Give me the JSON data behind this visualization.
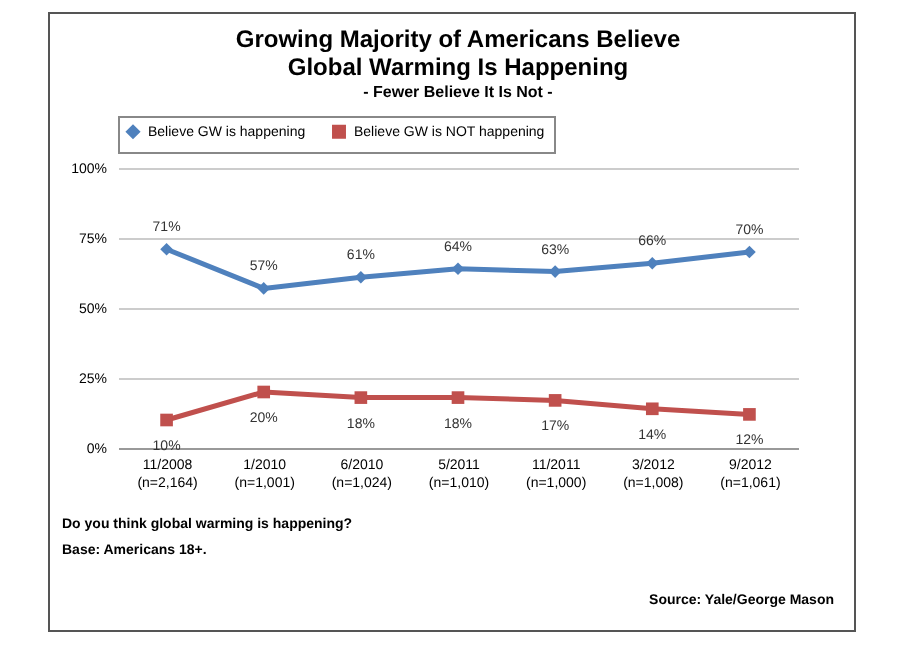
{
  "chart_data": {
    "type": "line",
    "title": [
      "Growing Majority of Americans Believe",
      "Global Warming Is Happening"
    ],
    "subtitle": "- Fewer Believe It Is Not -",
    "categories": [
      "11/2008\n(n=2,164)",
      "1/2010\n(n=1,001)",
      "6/2010\n(n=1,024)",
      "5/2011\n(n=1,010)",
      "11/2011\n(n=1,000)",
      "3/2012\n(n=1,008)",
      "9/2012\n(n=1,061)"
    ],
    "series": [
      {
        "name": "Believe GW is happening",
        "color": "#4f81bd",
        "marker": "diamond",
        "values": [
          71,
          57,
          61,
          64,
          63,
          66,
          70
        ],
        "value_labels": [
          "71%",
          "57%",
          "61%",
          "64%",
          "63%",
          "66%",
          "70%"
        ]
      },
      {
        "name": "Believe GW is NOT happening",
        "color": "#c0504d",
        "marker": "square",
        "values": [
          10,
          20,
          18,
          18,
          17,
          14,
          12
        ],
        "value_labels": [
          "10%",
          "20%",
          "18%",
          "18%",
          "17%",
          "14%",
          "12%"
        ]
      }
    ],
    "ylim": [
      0,
      100
    ],
    "yticks": [
      {
        "value": 0,
        "label": "0%"
      },
      {
        "value": 25,
        "label": "25%"
      },
      {
        "value": 50,
        "label": "50%"
      },
      {
        "value": 75,
        "label": "75%"
      },
      {
        "value": 100,
        "label": "100%"
      }
    ],
    "grid": "y",
    "legend": "top",
    "line_style": "solid",
    "annotations": [
      "Do you think global warming is happening?",
      "Base: Americans 18+.",
      "Source: Yale/George Mason"
    ]
  }
}
